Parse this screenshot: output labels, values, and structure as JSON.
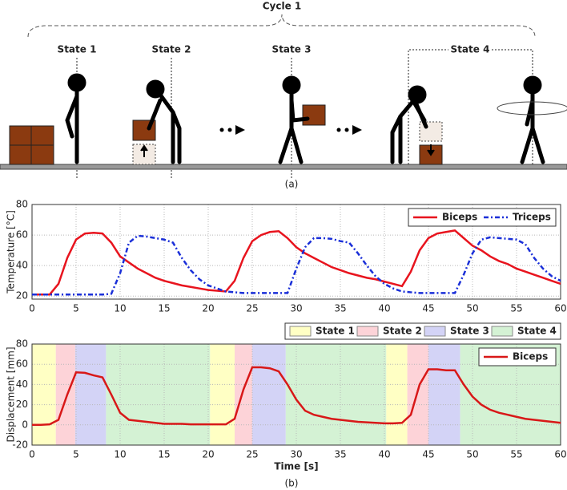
{
  "diagram": {
    "cycle_label": "Cycle 1",
    "states": [
      "State 1",
      "State 2",
      "State 3",
      "State 4"
    ],
    "caption": "(a)"
  },
  "caption_b": "(b)",
  "chart_data": [
    {
      "type": "line",
      "ylabel": "Temperature [°C]",
      "xlim": [
        0,
        60
      ],
      "ylim": [
        18,
        80
      ],
      "xticks": [
        0,
        5,
        10,
        15,
        20,
        25,
        30,
        35,
        40,
        45,
        50,
        55,
        60
      ],
      "yticks": [
        20,
        40,
        60,
        80
      ],
      "grid": true,
      "legend": "upper right",
      "x": [
        0,
        1,
        2,
        3,
        4,
        5,
        6,
        7,
        8,
        9,
        10,
        11,
        12,
        13,
        14,
        15,
        16,
        17,
        18,
        19,
        20,
        21,
        22,
        23,
        24,
        25,
        26,
        27,
        28,
        29,
        30,
        31,
        32,
        33,
        34,
        35,
        36,
        37,
        38,
        39,
        40,
        41,
        42,
        43,
        44,
        45,
        46,
        47,
        48,
        49,
        50,
        51,
        52,
        53,
        54,
        55,
        56,
        57,
        58,
        59,
        60
      ],
      "series": [
        {
          "name": "Biceps",
          "color": "#e8141e",
          "dash": "none",
          "values": [
            21,
            21,
            21,
            28,
            45,
            57,
            61,
            61.5,
            61,
            55,
            46,
            42,
            38,
            35,
            32,
            30,
            28.5,
            27,
            26,
            25,
            24,
            23.5,
            23,
            30,
            45,
            56,
            60,
            62,
            62.5,
            58,
            52,
            48,
            45,
            42,
            39,
            37,
            35,
            33.5,
            32,
            31,
            29.5,
            28,
            26.5,
            36,
            50,
            58,
            61,
            62,
            63,
            58,
            53,
            50,
            46,
            43,
            41,
            38,
            36,
            34,
            32,
            30,
            28
          ]
        },
        {
          "name": "Triceps",
          "color": "#1a2fd8",
          "dash": "dotdash",
          "values": [
            21,
            21,
            21,
            21,
            21,
            21,
            21,
            21,
            21,
            21.5,
            35,
            55,
            59.5,
            59,
            58,
            57,
            55,
            45,
            37,
            31,
            27,
            25,
            23,
            22.5,
            22,
            22,
            22,
            22,
            22,
            22,
            38,
            52,
            58,
            58,
            57.5,
            56,
            55,
            48,
            40,
            33,
            28,
            25,
            23,
            22.5,
            22,
            22,
            22,
            22,
            22,
            34,
            48,
            57,
            58.5,
            58,
            57.5,
            57,
            54,
            45,
            38,
            33,
            30
          ]
        }
      ]
    },
    {
      "type": "line",
      "ylabel": "Displacement [mm]",
      "xlabel": "Time [s]",
      "xlim": [
        0,
        60
      ],
      "ylim": [
        -20,
        80
      ],
      "xticks": [
        0,
        5,
        10,
        15,
        20,
        25,
        30,
        35,
        40,
        45,
        50,
        55,
        60
      ],
      "yticks": [
        -20,
        0,
        20,
        40,
        60,
        80
      ],
      "grid": true,
      "legend": "upper right",
      "regions": [
        {
          "name": "State 1",
          "color": "#ffffc4",
          "intervals": [
            [
              0,
              2.7
            ],
            [
              20.2,
              23
            ],
            [
              40.2,
              42.6
            ]
          ]
        },
        {
          "name": "State 2",
          "color": "#fdd3d8",
          "intervals": [
            [
              2.7,
              4.9
            ],
            [
              23,
              25
            ],
            [
              42.6,
              45
            ]
          ]
        },
        {
          "name": "State 3",
          "color": "#d3d3f6",
          "intervals": [
            [
              4.9,
              8.4
            ],
            [
              25,
              28.8
            ],
            [
              45,
              48.6
            ]
          ]
        },
        {
          "name": "State 4",
          "color": "#d4f2d4",
          "intervals": [
            [
              8.4,
              20.2
            ],
            [
              28.8,
              40.2
            ],
            [
              48.6,
              60
            ]
          ]
        }
      ],
      "x": [
        0,
        1,
        2,
        3,
        4,
        5,
        6,
        7,
        8,
        9,
        10,
        11,
        12,
        13,
        14,
        15,
        16,
        17,
        18,
        19,
        20,
        21,
        22,
        23,
        24,
        25,
        26,
        27,
        28,
        29,
        30,
        31,
        32,
        33,
        34,
        35,
        36,
        37,
        38,
        39,
        40,
        41,
        42,
        43,
        44,
        45,
        46,
        47,
        48,
        49,
        50,
        51,
        52,
        53,
        54,
        55,
        56,
        57,
        58,
        59,
        60
      ],
      "series": [
        {
          "name": "Biceps",
          "color": "#d81818",
          "dash": "none",
          "values": [
            0,
            0,
            0.5,
            5,
            30,
            52,
            51.5,
            49,
            47,
            30,
            12,
            5,
            4,
            3,
            2,
            1,
            1,
            1,
            0.5,
            0.5,
            0.5,
            0.5,
            0.5,
            6,
            35,
            57,
            57,
            56,
            53,
            40,
            25,
            14,
            10,
            8,
            6,
            5,
            4,
            3,
            2.5,
            2,
            1.5,
            1.5,
            2,
            10,
            40,
            55,
            55,
            54,
            54,
            40,
            28,
            20,
            15,
            12,
            10,
            8,
            6,
            5,
            4,
            3,
            2
          ]
        }
      ]
    }
  ]
}
